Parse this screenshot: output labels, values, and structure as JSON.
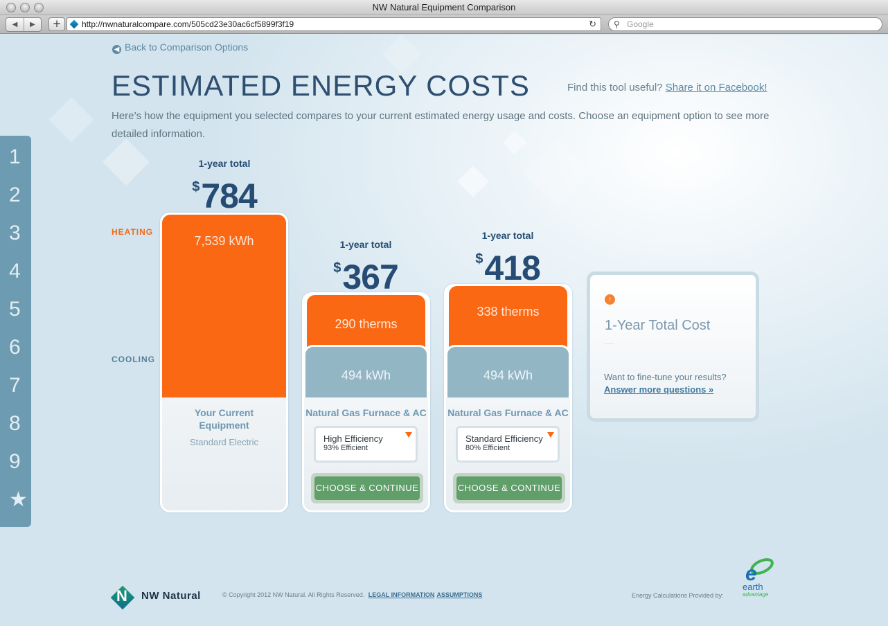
{
  "window": {
    "title": "NW Natural Equipment Comparison"
  },
  "toolbar": {
    "url": "http://nwnaturalcompare.com/505cd23e30ac6cf5899f3f19",
    "search_placeholder": "Google",
    "back_glyph": "◀",
    "forward_glyph": "▶",
    "add_glyph": "+",
    "reload_glyph": "↻",
    "search_glyph": "⚲"
  },
  "sidebar": {
    "steps": [
      "1",
      "2",
      "3",
      "4",
      "5",
      "6",
      "7",
      "8",
      "9",
      "★"
    ]
  },
  "page": {
    "back_link": "Back to Comparison Options",
    "title": "ESTIMATED ENERGY COSTS",
    "share_prompt": "Find this tool useful?",
    "share_link": "Share it on Facebook!",
    "intro": "Here’s how the equipment you selected compares to your current estimated energy usage and costs. Choose an equipment option to see more detailed information.",
    "heating_label": "HEATING",
    "cooling_label": "COOLING"
  },
  "colors": {
    "heating": "#fb6814",
    "cooling": "#93b6c5",
    "button": "#609e6a",
    "title": "#2e4f70"
  },
  "options": [
    {
      "total_label": "1-year total",
      "currency": "$",
      "total": "784",
      "heating": "7,539 kWh",
      "cooling": "",
      "name": "Your Current Equipment",
      "subtitle": "Standard Electric"
    },
    {
      "total_label": "1-year total",
      "currency": "$",
      "total": "367",
      "heating": "290 therms",
      "cooling": "494 kWh",
      "name": "Natural Gas Furnace & AC",
      "efficiency_name": "High Efficiency",
      "efficiency_pct": "93% Efficient",
      "button": "CHOOSE & CONTINUE"
    },
    {
      "total_label": "1-year total",
      "currency": "$",
      "total": "418",
      "heating": "338 therms",
      "cooling": "494 kWh",
      "name": "Natural Gas Furnace & AC",
      "efficiency_name": "Standard Efficiency",
      "efficiency_pct": "80% Efficient",
      "button": "CHOOSE & CONTINUE"
    }
  ],
  "legend": {
    "icon": "up-arrow-icon",
    "title": "1-Year Total Cost",
    "question": "Want to fine-tune your results?",
    "link": "Answer more questions »"
  },
  "footer": {
    "brand": "NW Natural",
    "copyright": "© Copyright 2012 NW Natural. All Rights Reserved.",
    "legal_link": "LEGAL INFORMATION",
    "assumptions_link": "ASSUMPTIONS",
    "calc_credit": "Energy Calculations Provided by:",
    "partner_logo_text": "earth advantage"
  }
}
